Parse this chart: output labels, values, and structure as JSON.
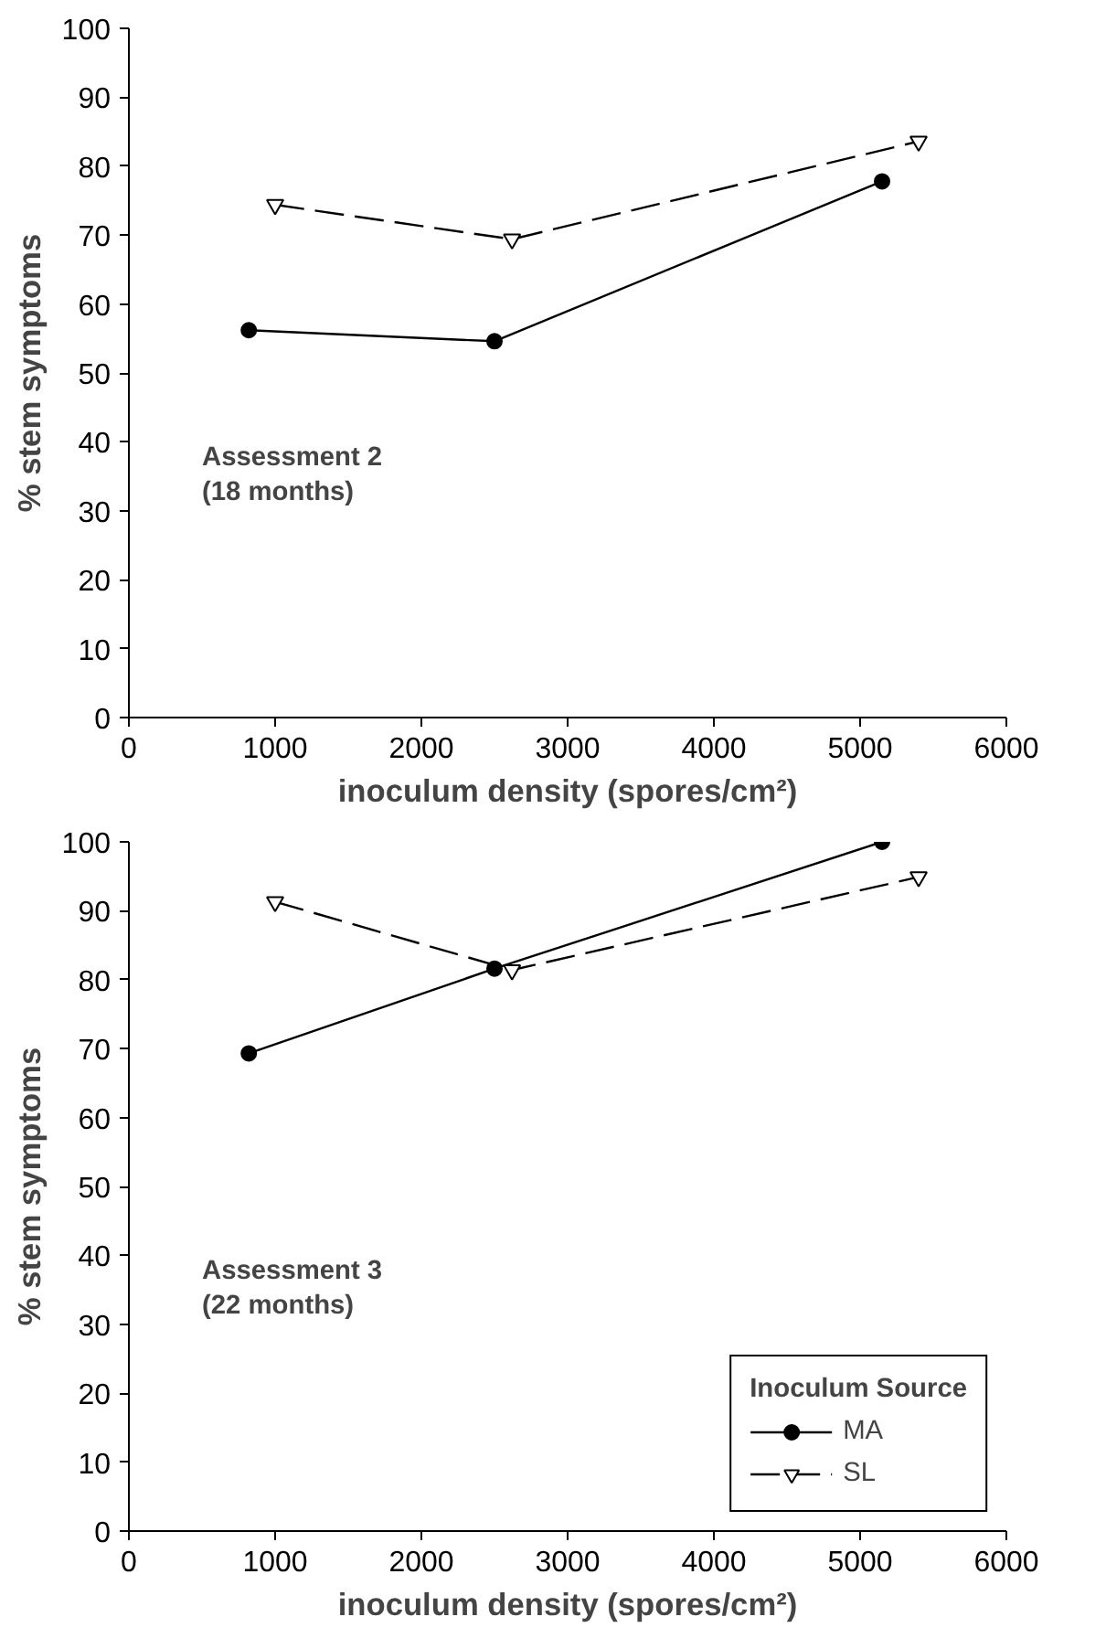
{
  "chart_data": [
    {
      "type": "line",
      "xlabel": "inoculum density (spores/cm²)",
      "ylabel": "% stem symptoms",
      "annotations": [
        "Assessment 2\n(18 months)"
      ],
      "xlim": [
        0,
        6000
      ],
      "xticks": [
        0,
        1000,
        2000,
        3000,
        4000,
        5000,
        6000
      ],
      "ylim": [
        0,
        100
      ],
      "yticks": [
        0,
        10,
        20,
        30,
        40,
        50,
        60,
        70,
        80,
        90,
        100
      ],
      "grid": false,
      "legend": false,
      "series": [
        {
          "color": "#000000",
          "marker": "circle",
          "line_style": "solid",
          "x": [
            820,
            2500,
            5150
          ],
          "values": [
            56.2,
            54.6,
            77.8
          ]
        },
        {
          "color": "#000000",
          "marker": "triangle",
          "line_style": "dashed",
          "x": [
            1000,
            2620,
            5400
          ],
          "values": [
            74.4,
            69.4,
            83.6
          ]
        }
      ]
    },
    {
      "type": "line",
      "xlabel": "inoculum density (spores/cm²)",
      "ylabel": "% stem symptoms",
      "annotations": [
        "Assessment 3\n(22 months)"
      ],
      "legend_title": "Inoculum Source",
      "xlim": [
        0,
        6000
      ],
      "xticks": [
        0,
        1000,
        2000,
        3000,
        4000,
        5000,
        6000
      ],
      "ylim": [
        0,
        100
      ],
      "yticks": [
        0,
        10,
        20,
        30,
        40,
        50,
        60,
        70,
        80,
        90,
        100
      ],
      "grid": false,
      "legend": "bottom right",
      "series": [
        {
          "name": "MA",
          "color": "#000000",
          "marker": "circle",
          "line_style": "solid",
          "x": [
            820,
            2500,
            5150
          ],
          "values": [
            69.3,
            81.6,
            100
          ]
        },
        {
          "name": "SL",
          "color": "#000000",
          "marker": "triangle",
          "line_style": "dashed",
          "x": [
            1000,
            2620,
            5400
          ],
          "values": [
            91.3,
            81.4,
            94.9
          ]
        }
      ]
    }
  ]
}
